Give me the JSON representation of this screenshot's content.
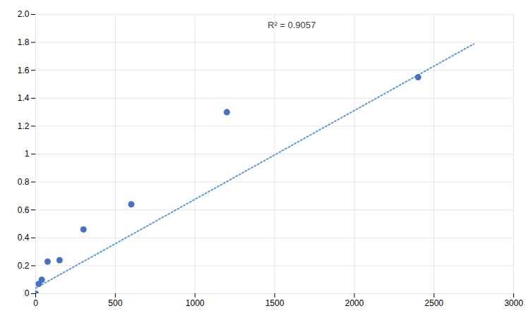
{
  "chart_data": {
    "type": "scatter",
    "x": [
      0,
      19,
      38,
      75,
      150,
      300,
      600,
      1200,
      2400
    ],
    "values": [
      0.0,
      0.07,
      0.1,
      0.23,
      0.24,
      0.46,
      0.64,
      1.3,
      1.55
    ],
    "color": "#4472C4",
    "marker": "circle",
    "trendline": {
      "x": [
        0,
        2750
      ],
      "values": [
        0.04,
        1.789
      ],
      "color": "#5B9BD5",
      "line_style": "dotted"
    },
    "annotation": "R² = 0.9057",
    "xlim": [
      0,
      3000
    ],
    "ylim": [
      0,
      2
    ],
    "xticks": [
      0,
      500,
      1000,
      1500,
      2000,
      2500,
      3000
    ],
    "yticks": [
      0,
      0.2,
      0.4,
      0.6,
      0.8,
      1,
      1.2,
      1.4,
      1.6,
      1.8,
      {
        "value": 2,
        "label": "2.0"
      }
    ],
    "grid": true
  }
}
